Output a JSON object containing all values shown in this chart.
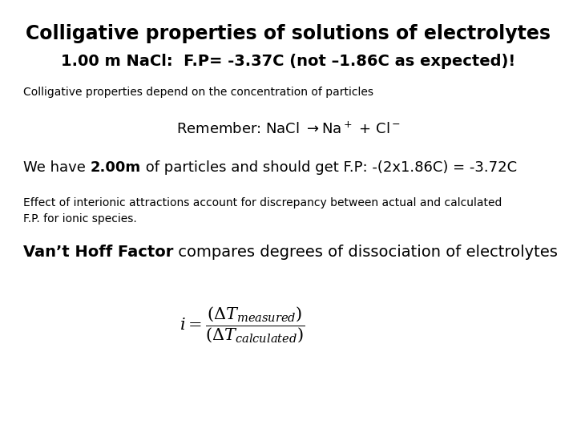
{
  "title": "Colligative properties of solutions of electrolytes",
  "line2_bold": "1.00 m NaCl:",
  "line2_normal": "  F.P= -3.37C (not –1.86C as expected)!",
  "line3": "Colligative properties depend on the concentration of particles",
  "line5_pre": "We have ",
  "line5_bold": "2.00m",
  "line5_post": " of particles and should get F.P: -(2x1.86C) = -3.72C",
  "line6": "Effect of interionic attractions account for discrepancy between actual and calculated\nF.P. for ionic species.",
  "line7_bold": "Van’t Hoff Factor",
  "line7_post": " compares degrees of dissociation of electrolytes",
  "bg_color": "#ffffff",
  "text_color": "#000000",
  "title_fontsize": 17,
  "line2_fontsize": 14,
  "line3_fontsize": 10,
  "line4_fontsize": 13,
  "line5_fontsize": 13,
  "line6_fontsize": 10,
  "line7_fontsize": 14,
  "formula_fontsize": 15,
  "fig_width": 7.2,
  "fig_height": 5.4,
  "dpi": 100
}
